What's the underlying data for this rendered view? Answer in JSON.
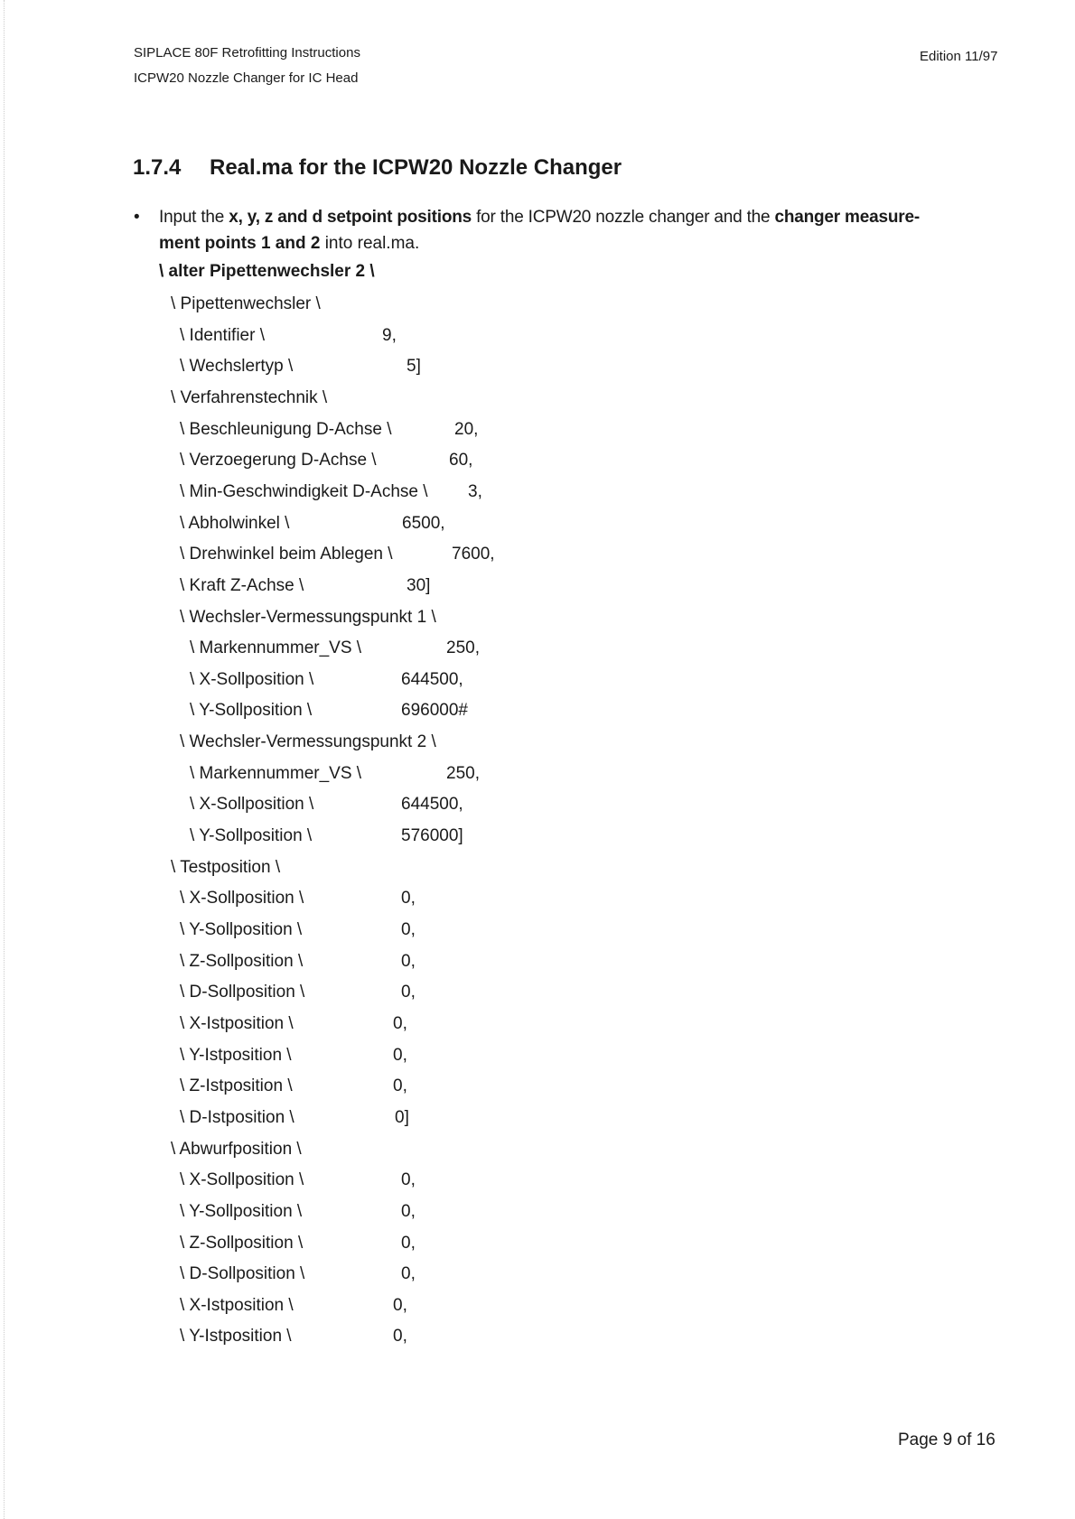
{
  "header": {
    "line1": "SIPLACE 80F Retrofitting Instructions",
    "line2": "ICPW20 Nozzle Changer for IC Head",
    "edition": "Edition 11/97"
  },
  "section": {
    "number": "1.7.4",
    "title": "Real.ma for the ICPW20 Nozzle Changer"
  },
  "bullet": {
    "t1": "Input the ",
    "b1": "x, y, z and d setpoint positions",
    "t2": " for the ICPW20 nozzle changer and the ",
    "b2": "changer measure-",
    "b3": "ment points 1 and 2",
    "t3": " into real.ma.",
    "bold_line": "\\ alter Pipettenwechsler 2 \\"
  },
  "rows": [
    {
      "label": "\\ Pipettenwechsler \\",
      "value": ""
    },
    {
      "label": "\\ Identifier \\",
      "value": "9,"
    },
    {
      "label": "\\ Wechslertyp \\",
      "value": "5]"
    },
    {
      "label": "\\ Verfahrenstechnik \\",
      "value": ""
    },
    {
      "label": "\\ Beschleunigung D-Achse \\",
      "value": "20,"
    },
    {
      "label": "\\ Verzoegerung D-Achse \\",
      "value": "60,"
    },
    {
      "label": "\\ Min-Geschwindigkeit D-Achse \\",
      "value": "3,"
    },
    {
      "label": "\\ Abholwinkel \\",
      "value": "6500,"
    },
    {
      "label": "\\ Drehwinkel beim Ablegen \\",
      "value": "7600,"
    },
    {
      "label": "\\ Kraft Z-Achse \\",
      "value": "30]"
    },
    {
      "label": "\\ Wechsler-Vermessungspunkt 1 \\",
      "value": ""
    },
    {
      "label": "\\ Markennummer_VS \\",
      "value": "250,"
    },
    {
      "label": "\\ X-Sollposition \\",
      "value": "644500,"
    },
    {
      "label": "\\ Y-Sollposition \\",
      "value": "696000#"
    },
    {
      "label": "\\ Wechsler-Vermessungspunkt 2 \\",
      "value": ""
    },
    {
      "label": "\\ Markennummer_VS \\",
      "value": "250,"
    },
    {
      "label": "\\ X-Sollposition \\",
      "value": "644500,"
    },
    {
      "label": "\\ Y-Sollposition \\",
      "value": "576000]"
    },
    {
      "label": "\\ Testposition \\",
      "value": ""
    },
    {
      "label": "\\ X-Sollposition \\",
      "value": "0,"
    },
    {
      "label": "\\ Y-Sollposition \\",
      "value": "0,"
    },
    {
      "label": "\\ Z-Sollposition \\",
      "value": "0,"
    },
    {
      "label": "\\ D-Sollposition \\",
      "value": "0,"
    },
    {
      "label": "\\ X-Istposition \\",
      "value": "0,"
    },
    {
      "label": "\\ Y-Istposition \\",
      "value": "0,"
    },
    {
      "label": "\\ Z-Istposition \\",
      "value": "0,"
    },
    {
      "label": "\\ D-Istposition \\",
      "value": "0]"
    },
    {
      "label": "\\ Abwurfposition \\",
      "value": ""
    },
    {
      "label": "\\ X-Sollposition \\",
      "value": "0,"
    },
    {
      "label": "\\ Y-Sollposition \\",
      "value": "0,"
    },
    {
      "label": "\\ Z-Sollposition \\",
      "value": "0,"
    },
    {
      "label": "\\ D-Sollposition \\",
      "value": "0,"
    },
    {
      "label": "\\ X-Istposition \\",
      "value": "0,"
    },
    {
      "label": "\\ Y-Istposition \\",
      "value": "0,"
    }
  ],
  "footer": {
    "page": "Page 9 of 16"
  }
}
